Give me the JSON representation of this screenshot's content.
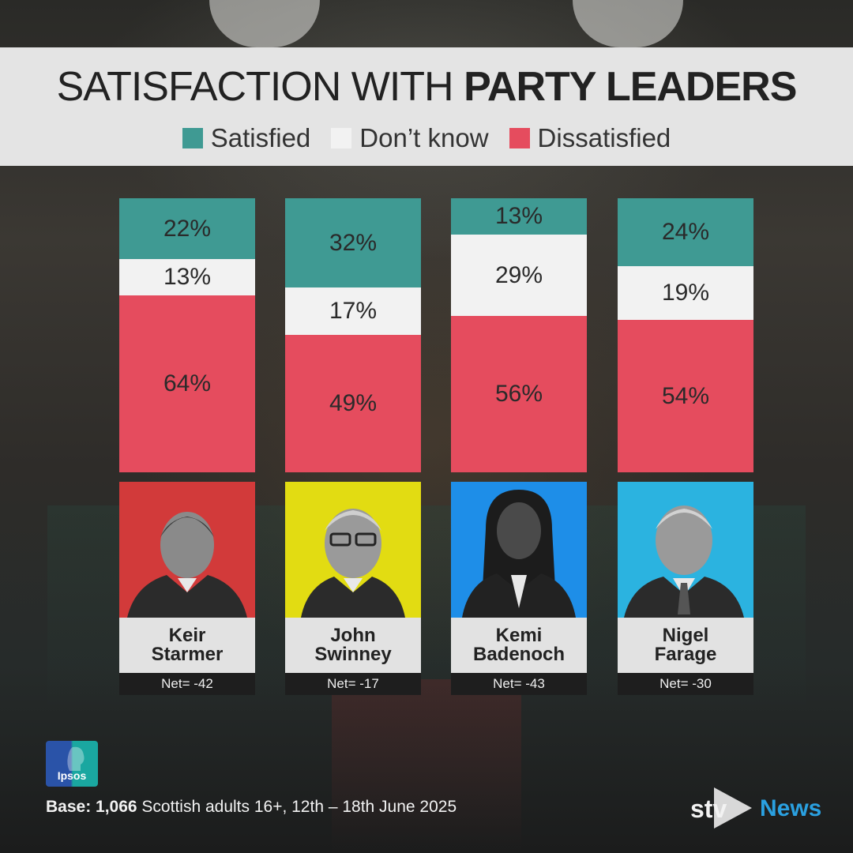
{
  "header": {
    "title_light": "SATISFACTION WITH",
    "title_bold": "PARTY LEADERS"
  },
  "legend": [
    {
      "label": "Satisfied",
      "color": "#3f9a93"
    },
    {
      "label": "Don’t know",
      "color": "#f2f2f2"
    },
    {
      "label": "Dissatisfied",
      "color": "#e54c5e"
    }
  ],
  "chart_data": {
    "type": "bar",
    "stacked": true,
    "categories": [
      "Keir Starmer",
      "John Swinney",
      "Kemi Badenoch",
      "Nigel Farage"
    ],
    "series": [
      {
        "name": "Satisfied",
        "values": [
          22,
          32,
          13,
          24
        ],
        "labels": [
          "22%",
          "32%",
          "13%",
          "24%"
        ]
      },
      {
        "name": "Don’t know",
        "values": [
          13,
          17,
          29,
          19
        ],
        "labels": [
          "13%",
          "17%",
          "29%",
          "19%"
        ]
      },
      {
        "name": "Dissatisfied",
        "values": [
          64,
          49,
          56,
          54
        ],
        "labels": [
          "64%",
          "49%",
          "56%",
          "54%"
        ]
      }
    ],
    "legend_position": "top",
    "grid": false
  },
  "leaders": [
    {
      "first": "Keir",
      "last": "Starmer",
      "net": "Net= -42",
      "photo_bg": "#d23a3a",
      "photo_icon": "leader-portrait"
    },
    {
      "first": "John",
      "last": "Swinney",
      "net": "Net= -17",
      "photo_bg": "#e2dc12",
      "photo_icon": "leader-portrait"
    },
    {
      "first": "Kemi",
      "last": "Badenoch",
      "net": "Net= -43",
      "photo_bg": "#1e8ee8",
      "photo_icon": "leader-portrait"
    },
    {
      "first": "Nigel",
      "last": "Farage",
      "net": "Net= -30",
      "photo_bg": "#2bb3e0",
      "photo_icon": "leader-portrait"
    }
  ],
  "footer": {
    "ipsos_logo_text": "Ipsos",
    "base_bold": "Base: 1,066",
    "base_rest": " Scottish adults 16+, 12th – 18th June 2025",
    "stv_logo": "stv",
    "news_logo": "News"
  }
}
